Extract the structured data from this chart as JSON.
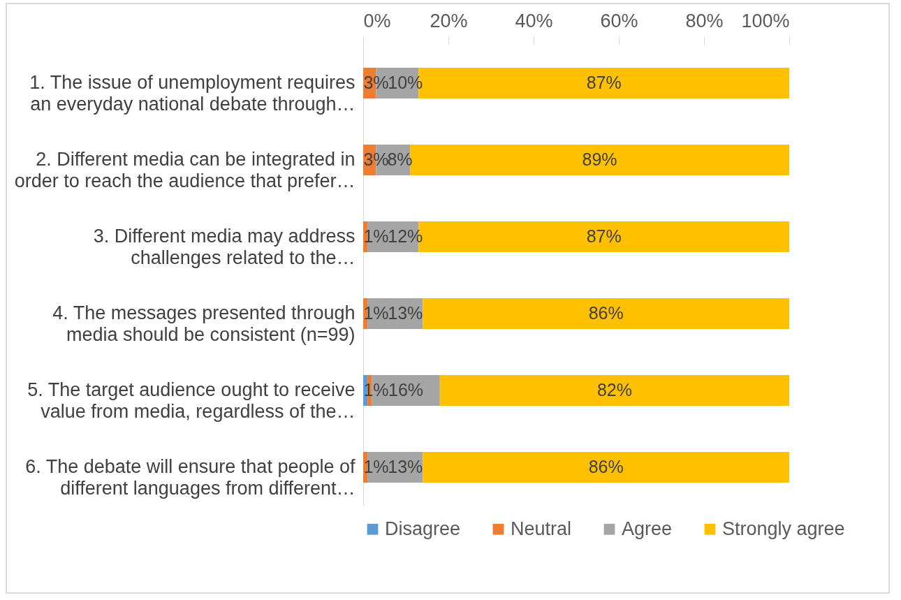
{
  "chart_data": {
    "type": "bar",
    "orientation": "horizontal",
    "stacked": true,
    "categories": [
      "1. The issue of unemployment requires\nan everyday national debate through…",
      "2. Different media can be integrated in\norder to reach the audience that prefer…",
      "3. Different media may address\nchallenges related to the…",
      "4. The messages presented through\nmedia should be consistent (n=99)",
      "5. The target audience ought to receive\nvalue from media, regardless of the…",
      "6. The debate will ensure that people of\ndifferent languages from different…"
    ],
    "series": [
      {
        "name": "Disagree",
        "color": "#5b9bd5",
        "values": [
          0,
          0,
          0,
          0,
          1,
          0
        ],
        "value_labels": [
          null,
          null,
          null,
          null,
          "1%",
          null
        ]
      },
      {
        "name": "Neutral",
        "color": "#ed7d31",
        "values": [
          3,
          3,
          1,
          1,
          1,
          1
        ],
        "value_labels": [
          "3%",
          "3%",
          "1%",
          "1%",
          null,
          "1%"
        ]
      },
      {
        "name": "Agree",
        "color": "#a5a5a5",
        "values": [
          10,
          8,
          12,
          13,
          16,
          13
        ],
        "value_labels": [
          "10%",
          "8%",
          "12%",
          "13%",
          "16%",
          "13%"
        ]
      },
      {
        "name": "Strongly agree",
        "color": "#ffc000",
        "values": [
          87,
          89,
          87,
          86,
          82,
          86
        ],
        "value_labels": [
          "87%",
          "89%",
          "87%",
          "86%",
          "82%",
          "86%"
        ]
      }
    ],
    "xlim": [
      0,
      100
    ],
    "xticks": [
      {
        "value": 0,
        "label": "0%"
      },
      {
        "value": 20,
        "label": "20%"
      },
      {
        "value": 40,
        "label": "40%"
      },
      {
        "value": 60,
        "label": "60%"
      },
      {
        "value": 80,
        "label": "80%"
      },
      {
        "value": 100,
        "label": "100%"
      }
    ],
    "grid": false,
    "legend": "bottom"
  }
}
